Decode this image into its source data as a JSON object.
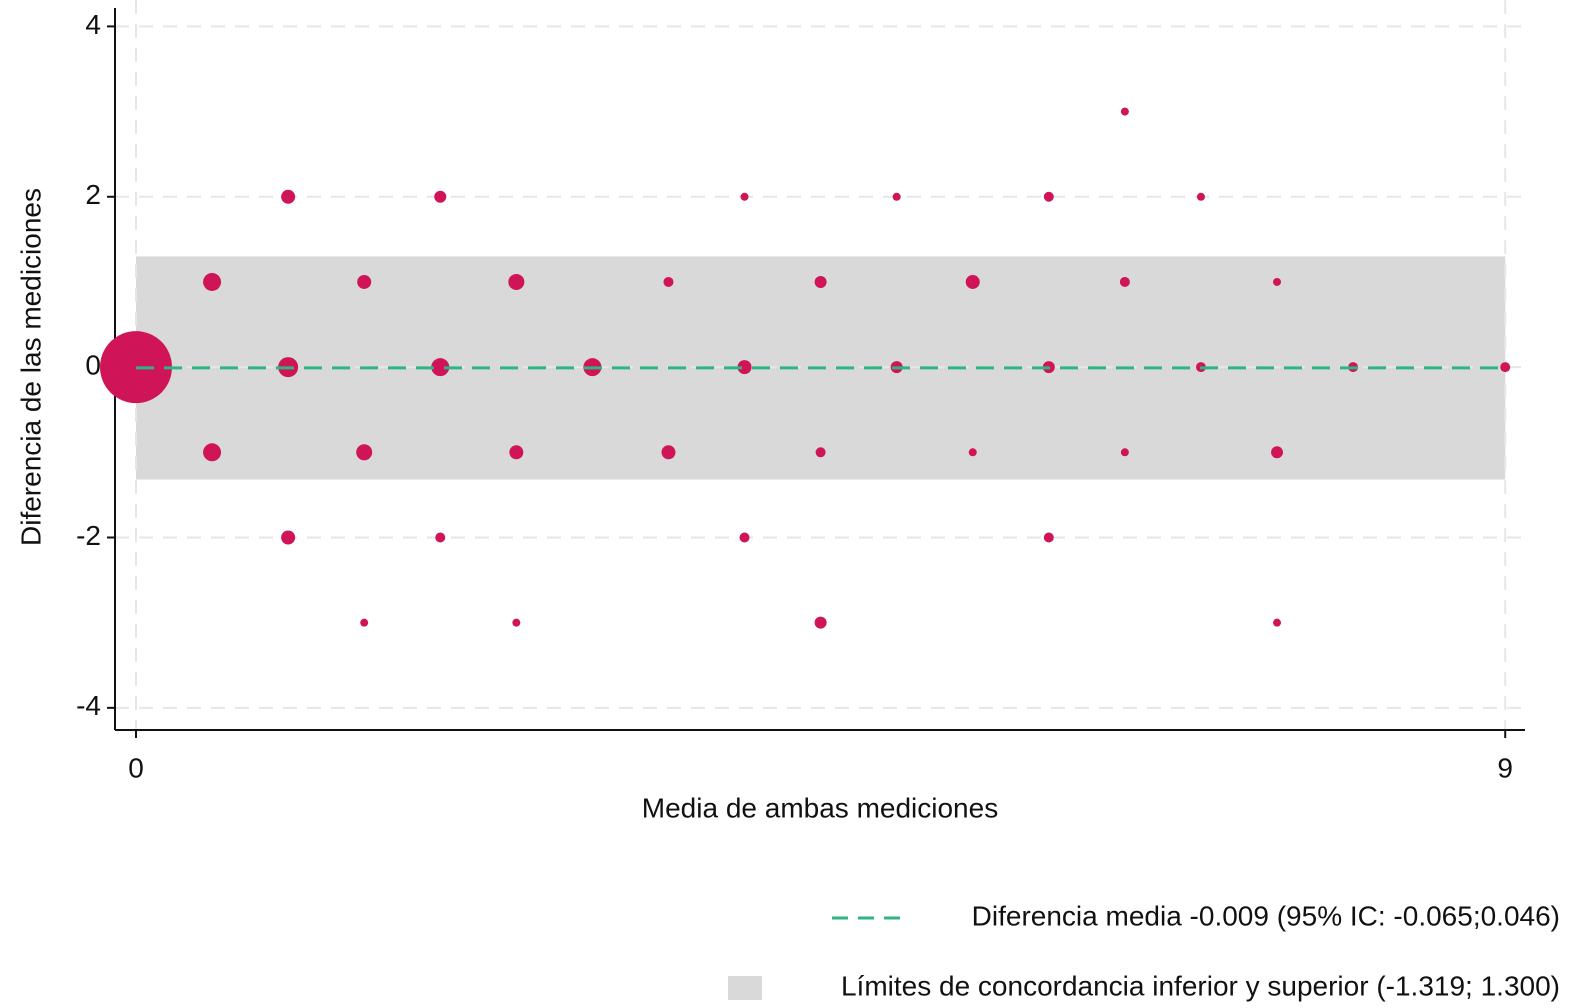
{
  "chart_data": {
    "type": "scatter",
    "xlabel": "Media de ambas mediciones",
    "ylabel": "Diferencia de las mediciones",
    "xlim": [
      -0.138,
      9.13
    ],
    "ylim": [
      -4.26,
      4.31
    ],
    "xticks": [
      0,
      9
    ],
    "yticks": [
      -4,
      -2,
      0,
      2,
      4
    ],
    "grid": true,
    "legend": "bottom-right",
    "series": [
      {
        "color": "#cf1458",
        "x": [
          0,
          0.5,
          0.5,
          1,
          1,
          1,
          1.5,
          1.5,
          1.5,
          2,
          2,
          2,
          2.5,
          2.5,
          2.5,
          3,
          3.5,
          3.5,
          4,
          4,
          4,
          4.5,
          4.5,
          4.5,
          5,
          5,
          5.5,
          5.5,
          6,
          6,
          6,
          6.5,
          6.5,
          6.5,
          7,
          7,
          7.5,
          7.5,
          7.5,
          8,
          9
        ],
        "values": [
          0,
          1,
          -1,
          2,
          0,
          -2,
          1,
          -1,
          -3,
          2,
          0,
          -2,
          1,
          -1,
          -3,
          0,
          1,
          -1,
          2,
          0,
          -2,
          1,
          -1,
          -3,
          2,
          0,
          1,
          -1,
          2,
          0,
          -2,
          3,
          1,
          -1,
          2,
          0,
          1,
          -1,
          -3,
          0,
          0
        ],
        "sizes": [
          36,
          9,
          9,
          7,
          10,
          7,
          7,
          8,
          4,
          6,
          9,
          5,
          8,
          7,
          4,
          9,
          5,
          7,
          4,
          7,
          5,
          6,
          5,
          6,
          4,
          6,
          7,
          4,
          5,
          6,
          5,
          4,
          5,
          4,
          4,
          5,
          4,
          6,
          4,
          5,
          5
        ]
      }
    ],
    "mean_line": {
      "name": "Diferencia media -0.009 (95% IC: -0.065;0.046)",
      "value": -0.009,
      "color": "#2fb57f"
    },
    "band": {
      "name": "Límites de concordancia inferior y superior (-1.319; 1.300)",
      "values": [
        -1.319,
        1.3
      ],
      "color": "#d9d9d9"
    },
    "span": [
      0,
      9
    ]
  }
}
